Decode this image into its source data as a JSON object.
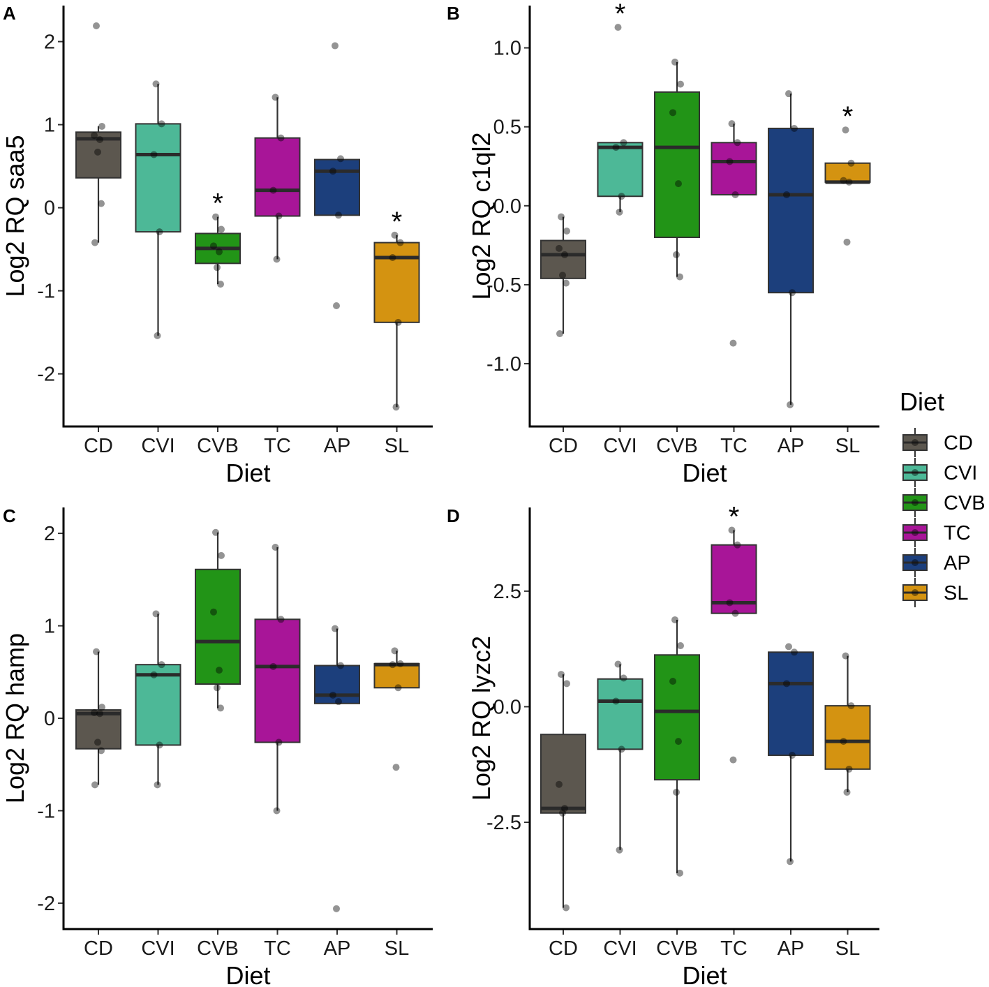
{
  "legend": {
    "title": "Diet",
    "items": [
      {
        "label": "CD",
        "color": "#5c574f"
      },
      {
        "label": "CVI",
        "color": "#4db897"
      },
      {
        "label": "CVB",
        "color": "#229417"
      },
      {
        "label": "TC",
        "color": "#a81598"
      },
      {
        "label": "AP",
        "color": "#1c3f7c"
      },
      {
        "label": "SL",
        "color": "#d49311"
      }
    ]
  },
  "chart_data": [
    {
      "panel": "A",
      "type": "boxplot",
      "xlabel": "Diet",
      "ylabel": "Log2 RQ saa5",
      "categories": [
        "CD",
        "CVI",
        "CVB",
        "TC",
        "AP",
        "SL"
      ],
      "ylim": [
        -2.6,
        2.4
      ],
      "yticks": [
        -2,
        -1,
        0,
        1,
        2
      ],
      "ytick_labels": [
        "-2",
        "-1",
        "0",
        "1",
        "2"
      ],
      "boxes": [
        {
          "q1": 0.36,
          "median": 0.83,
          "q3": 0.91,
          "whisker_low": -0.42,
          "whisker_high": 0.98
        },
        {
          "q1": -0.29,
          "median": 0.64,
          "q3": 1.01,
          "whisker_low": -1.54,
          "whisker_high": 1.49
        },
        {
          "q1": -0.67,
          "median": -0.49,
          "q3": -0.31,
          "whisker_low": -0.92,
          "whisker_high": -0.11
        },
        {
          "q1": -0.1,
          "median": 0.21,
          "q3": 0.84,
          "whisker_low": -0.62,
          "whisker_high": 1.33
        },
        {
          "q1": -0.09,
          "median": 0.44,
          "q3": 0.58,
          "whisker_low": -0.09,
          "whisker_high": 0.58
        },
        {
          "q1": -1.38,
          "median": -0.6,
          "q3": -0.42,
          "whisker_low": -2.4,
          "whisker_high": -0.33
        }
      ],
      "points": [
        [
          2.19,
          0.98,
          0.87,
          0.82,
          0.67,
          0.05,
          -0.42
        ],
        [
          1.49,
          1.01,
          0.64,
          -0.29,
          -1.54
        ],
        [
          -0.11,
          -0.26,
          -0.46,
          -0.53,
          -0.72,
          -0.92
        ],
        [
          1.33,
          0.84,
          0.21,
          -0.1,
          -0.62
        ],
        [
          1.95,
          0.59,
          0.44,
          -0.09,
          -1.18
        ],
        [
          -0.33,
          -0.42,
          -0.6,
          -1.38,
          -2.4
        ]
      ],
      "significance": [
        "",
        "",
        "*",
        "",
        "",
        "*"
      ]
    },
    {
      "panel": "B",
      "type": "boxplot",
      "xlabel": "Diet",
      "ylabel": "Log2 RQ c1ql2",
      "categories": [
        "CD",
        "CVI",
        "CVB",
        "TC",
        "AP",
        "SL"
      ],
      "ylim": [
        -1.38,
        1.25
      ],
      "yticks": [
        -1.0,
        -0.5,
        0.0,
        0.5,
        1.0
      ],
      "ytick_labels": [
        "-1.0",
        "-0.5",
        "0.0",
        "0.5",
        "1.0"
      ],
      "boxes": [
        {
          "q1": -0.46,
          "median": -0.31,
          "q3": -0.22,
          "whisker_low": -0.81,
          "whisker_high": -0.07
        },
        {
          "q1": 0.06,
          "median": 0.37,
          "q3": 0.4,
          "whisker_low": -0.04,
          "whisker_high": 0.4
        },
        {
          "q1": -0.2,
          "median": 0.37,
          "q3": 0.72,
          "whisker_low": -0.45,
          "whisker_high": 0.91
        },
        {
          "q1": 0.07,
          "median": 0.28,
          "q3": 0.4,
          "whisker_low": 0.07,
          "whisker_high": 0.52
        },
        {
          "q1": -0.55,
          "median": 0.07,
          "q3": 0.49,
          "whisker_low": -1.26,
          "whisker_high": 0.71
        },
        {
          "q1": 0.15,
          "median": 0.15,
          "q3": 0.27,
          "whisker_low": 0.15,
          "whisker_high": 0.27
        }
      ],
      "points": [
        [
          -0.07,
          -0.16,
          -0.27,
          -0.31,
          -0.44,
          -0.49,
          -0.81
        ],
        [
          1.13,
          0.4,
          0.37,
          0.06,
          -0.04
        ],
        [
          0.91,
          0.77,
          0.59,
          0.14,
          -0.31,
          -0.45
        ],
        [
          0.52,
          0.4,
          0.28,
          0.07,
          -0.87
        ],
        [
          0.71,
          0.49,
          0.07,
          -0.55,
          -1.26
        ],
        [
          0.48,
          0.27,
          0.16,
          0.15,
          -0.23
        ]
      ],
      "significance": [
        "",
        "*",
        "",
        "",
        "",
        "*"
      ]
    },
    {
      "panel": "C",
      "type": "boxplot",
      "xlabel": "Diet",
      "ylabel": "Log2 RQ hamp",
      "categories": [
        "CD",
        "CVI",
        "CVB",
        "TC",
        "AP",
        "SL"
      ],
      "ylim": [
        -2.25,
        2.25
      ],
      "yticks": [
        -2,
        -1,
        0,
        1,
        2
      ],
      "ytick_labels": [
        "-2",
        "-1",
        "0",
        "1",
        "2"
      ],
      "boxes": [
        {
          "q1": -0.33,
          "median": 0.05,
          "q3": 0.09,
          "whisker_low": -0.72,
          "whisker_high": 0.72
        },
        {
          "q1": -0.29,
          "median": 0.47,
          "q3": 0.58,
          "whisker_low": -0.72,
          "whisker_high": 1.13
        },
        {
          "q1": 0.37,
          "median": 0.83,
          "q3": 1.61,
          "whisker_low": 0.11,
          "whisker_high": 2.01
        },
        {
          "q1": -0.26,
          "median": 0.56,
          "q3": 1.07,
          "whisker_low": -1.0,
          "whisker_high": 1.85
        },
        {
          "q1": 0.16,
          "median": 0.25,
          "q3": 0.57,
          "whisker_low": 0.16,
          "whisker_high": 0.97
        },
        {
          "q1": 0.33,
          "median": 0.58,
          "q3": 0.59,
          "whisker_low": 0.33,
          "whisker_high": 0.73
        }
      ],
      "points": [
        [
          0.72,
          0.12,
          0.06,
          0.05,
          -0.26,
          -0.35,
          -0.72
        ],
        [
          1.13,
          0.58,
          0.47,
          -0.29,
          -0.72
        ],
        [
          2.01,
          1.76,
          1.15,
          0.52,
          0.33,
          0.11
        ],
        [
          1.85,
          1.07,
          0.56,
          -0.26,
          -1.0
        ],
        [
          0.97,
          0.57,
          0.25,
          0.18,
          -2.06
        ],
        [
          0.73,
          0.59,
          0.58,
          0.33,
          -0.53
        ]
      ],
      "significance": [
        "",
        "",
        "",
        "",
        "",
        ""
      ]
    },
    {
      "panel": "D",
      "type": "boxplot",
      "xlabel": "Diet",
      "ylabel": "Log2 RQ lyzc2",
      "categories": [
        "CD",
        "CVI",
        "CVB",
        "TC",
        "AP",
        "SL"
      ],
      "ylim": [
        -4.75,
        4.25
      ],
      "yticks": [
        -2.5,
        0.0,
        2.5
      ],
      "ytick_labels": [
        "-2.5",
        "0.0",
        "2.5"
      ],
      "boxes": [
        {
          "q1": -2.3,
          "median": -2.2,
          "q3": -0.6,
          "whisker_low": -4.35,
          "whisker_high": 0.7
        },
        {
          "q1": -0.92,
          "median": 0.12,
          "q3": 0.6,
          "whisker_low": -3.1,
          "whisker_high": 0.92
        },
        {
          "q1": -1.58,
          "median": -0.1,
          "q3": 1.12,
          "whisker_low": -3.6,
          "whisker_high": 1.88
        },
        {
          "q1": 2.02,
          "median": 2.25,
          "q3": 3.5,
          "whisker_low": 2.02,
          "whisker_high": 3.82
        },
        {
          "q1": -1.05,
          "median": 0.5,
          "q3": 1.18,
          "whisker_low": -3.35,
          "whisker_high": 1.18
        },
        {
          "q1": -1.35,
          "median": -0.75,
          "q3": 0.02,
          "whisker_low": -1.85,
          "whisker_high": 1.1
        }
      ],
      "points": [
        [
          0.7,
          0.5,
          -1.68,
          -2.2,
          -2.3,
          -4.35
        ],
        [
          0.92,
          0.62,
          0.12,
          -0.92,
          -3.1
        ],
        [
          1.88,
          1.32,
          0.55,
          -0.75,
          -1.85,
          -3.6
        ],
        [
          3.82,
          3.5,
          2.25,
          2.02,
          -1.15
        ],
        [
          1.3,
          1.18,
          0.5,
          -1.05,
          -3.35
        ],
        [
          1.1,
          0.02,
          -0.75,
          -1.35,
          -1.85
        ]
      ],
      "significance": [
        "",
        "",
        "",
        "*",
        "",
        ""
      ]
    }
  ]
}
